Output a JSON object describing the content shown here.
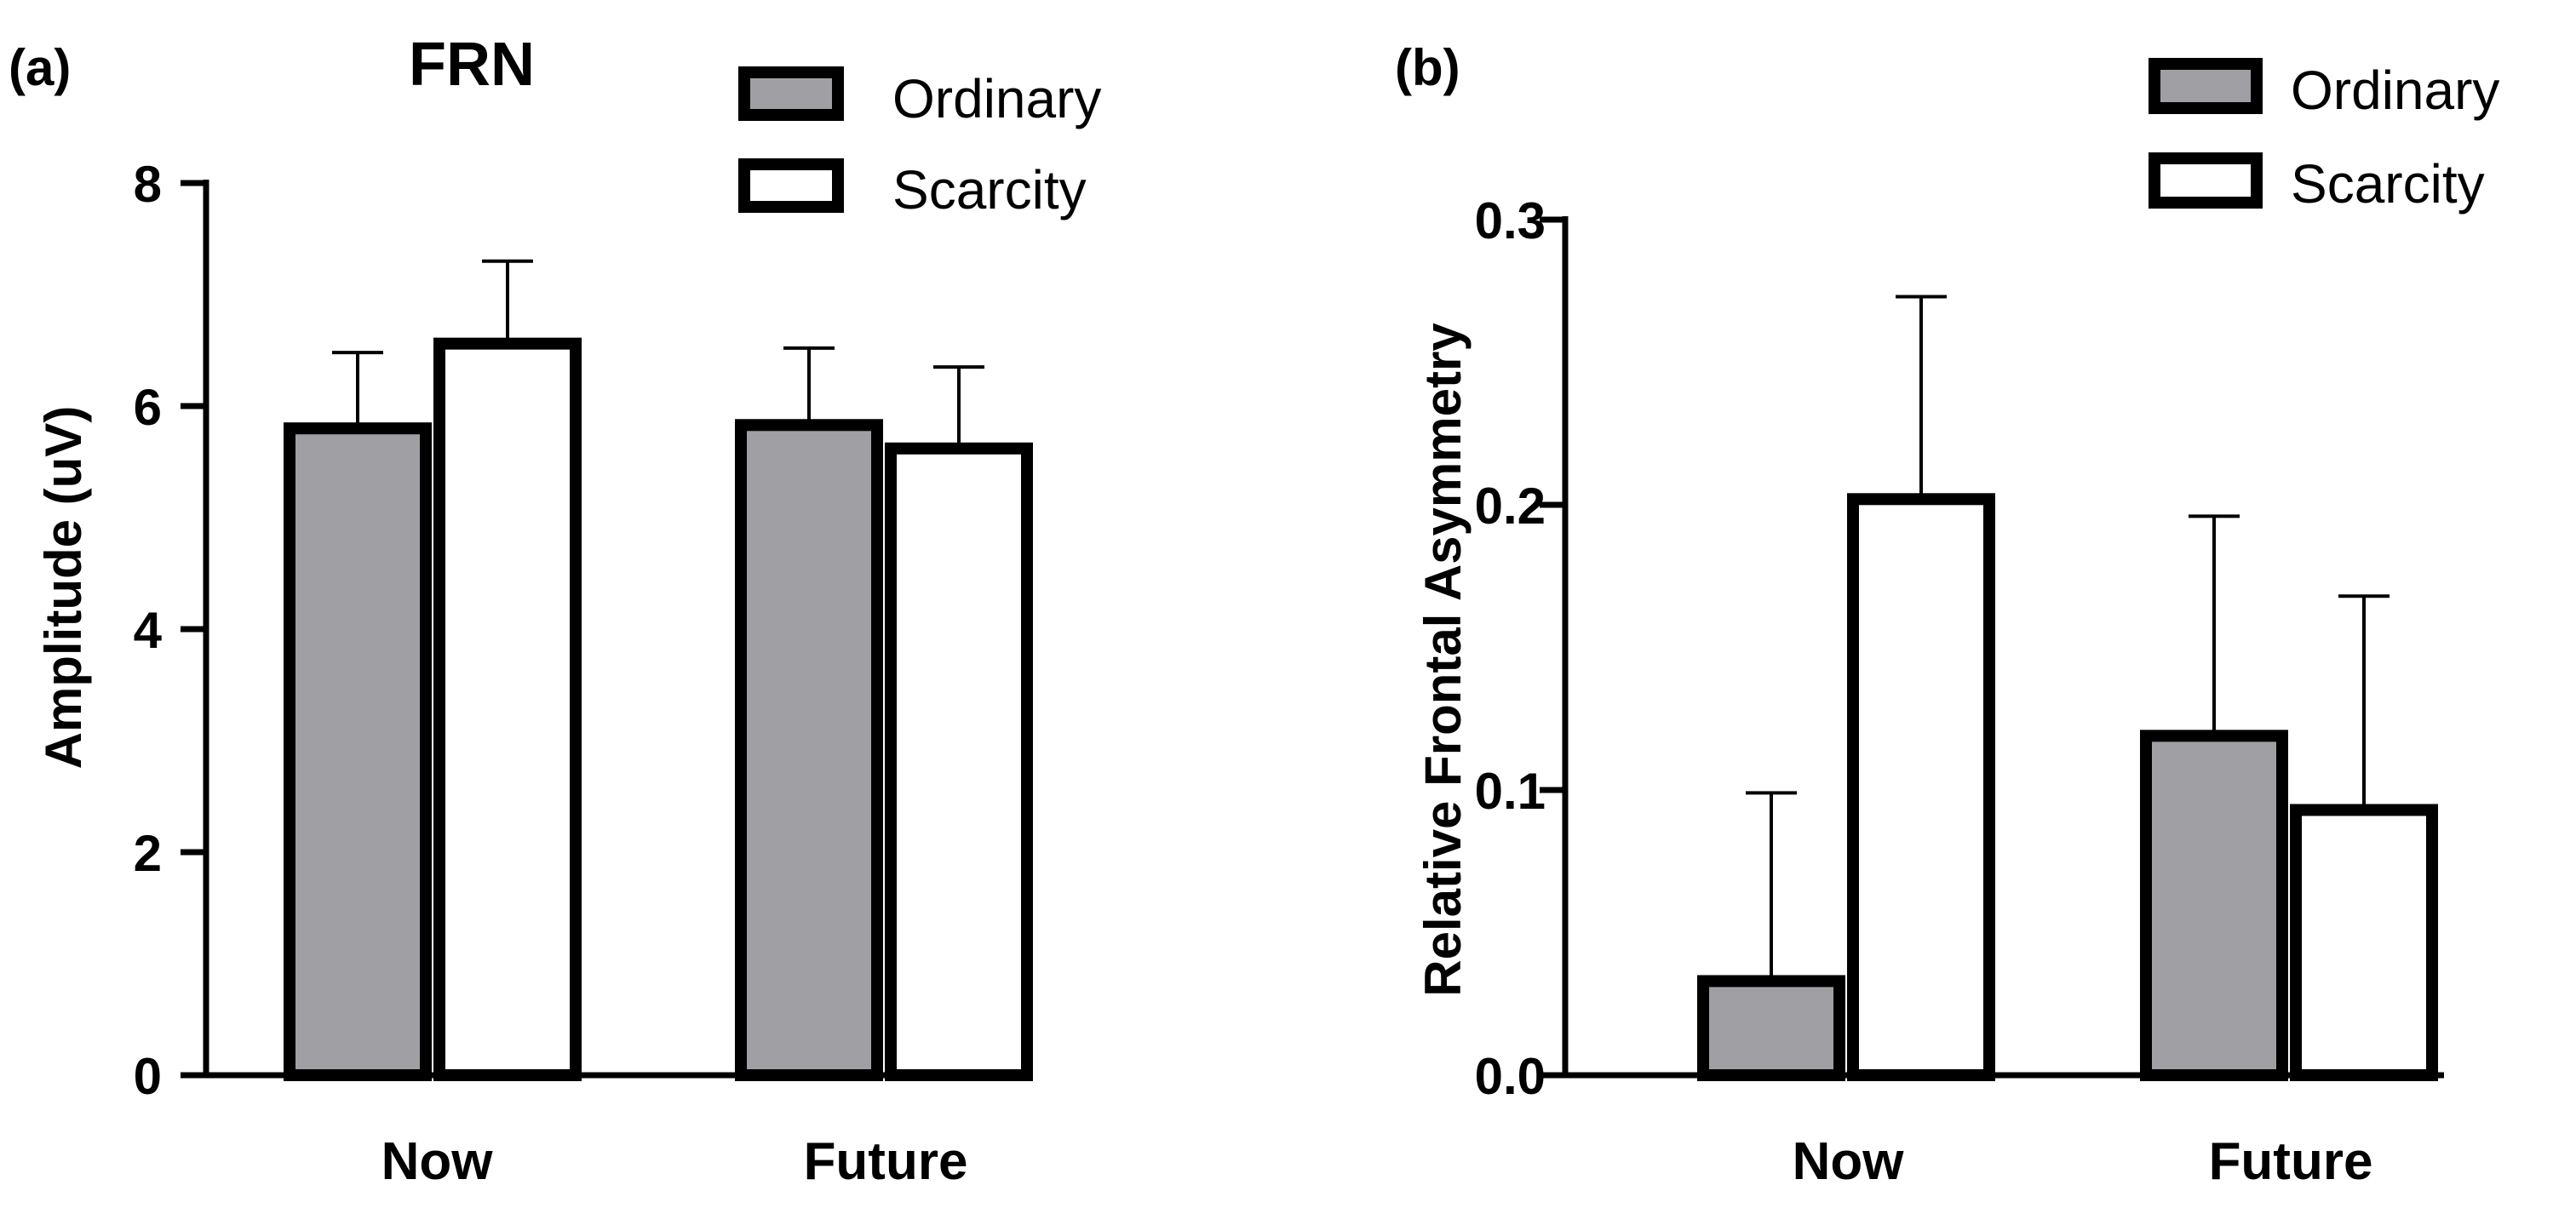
{
  "colors": {
    "ordinary": "#a0a0a4",
    "scarcity": "#ffffff",
    "stroke": "#000000"
  },
  "chart_data": [
    {
      "panel": "(a)",
      "type": "bar",
      "title": "FRN",
      "xlabel": "",
      "ylabel": "Amplitude (uV)",
      "categories": [
        "Now",
        "Future"
      ],
      "series": [
        {
          "name": "Ordinary",
          "values": [
            5.8,
            5.83
          ],
          "errors": [
            0.68,
            0.69
          ]
        },
        {
          "name": "Scarcity",
          "values": [
            6.56,
            5.62
          ],
          "errors": [
            0.74,
            0.73
          ]
        }
      ],
      "ylim": [
        0,
        8
      ],
      "yticks": [
        "0",
        "2",
        "4",
        "6",
        "8"
      ],
      "legend": "top-right"
    },
    {
      "panel": "(b)",
      "type": "bar",
      "title": "",
      "xlabel": "",
      "ylabel": "Relative Frontal Asymmetry",
      "categories": [
        "Now",
        "Future"
      ],
      "series": [
        {
          "name": "Ordinary",
          "values": [
            0.033,
            0.119
          ],
          "errors": [
            0.066,
            0.077
          ]
        },
        {
          "name": "Scarcity",
          "values": [
            0.202,
            0.093
          ],
          "errors": [
            0.071,
            0.075
          ]
        }
      ],
      "ylim": [
        0,
        0.3
      ],
      "yticks": [
        "0.0",
        "0.1",
        "0.2",
        "0.3"
      ],
      "legend": "top-right"
    }
  ]
}
